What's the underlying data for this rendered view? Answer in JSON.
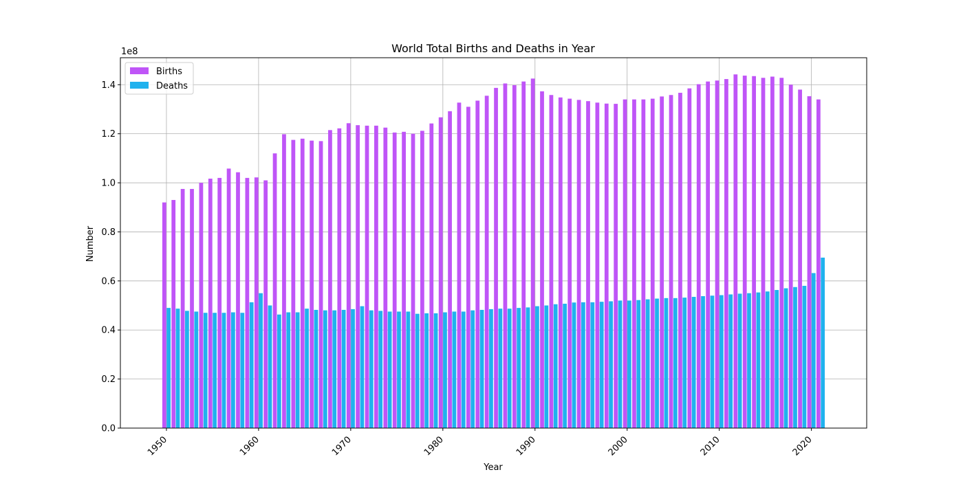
{
  "chart_data": {
    "type": "bar",
    "title": "World Total Births and Deaths in Year",
    "xlabel": "Year",
    "ylabel": "Number",
    "y_offset_label": "1e8",
    "y_scale": 100000000,
    "xlim": [
      1945,
      2026
    ],
    "ylim": [
      0,
      1.51
    ],
    "x_ticks": [
      1950,
      1960,
      1970,
      1980,
      1990,
      2000,
      2010,
      2020
    ],
    "y_ticks": [
      0.0,
      0.2,
      0.4,
      0.6,
      0.8,
      1.0,
      1.2,
      1.4
    ],
    "y_tick_labels": [
      "0.0",
      "0.2",
      "0.4",
      "0.6",
      "0.8",
      "1.0",
      "1.2",
      "1.4"
    ],
    "x_tick_rotation": 45,
    "grid": true,
    "legend_position": "top-left",
    "x": [
      1950,
      1951,
      1952,
      1953,
      1954,
      1955,
      1956,
      1957,
      1958,
      1959,
      1960,
      1961,
      1962,
      1963,
      1964,
      1965,
      1966,
      1967,
      1968,
      1969,
      1970,
      1971,
      1972,
      1973,
      1974,
      1975,
      1976,
      1977,
      1978,
      1979,
      1980,
      1981,
      1982,
      1983,
      1984,
      1985,
      1986,
      1987,
      1988,
      1989,
      1990,
      1991,
      1992,
      1993,
      1994,
      1995,
      1996,
      1997,
      1998,
      1999,
      2000,
      2001,
      2002,
      2003,
      2004,
      2005,
      2006,
      2007,
      2008,
      2009,
      2010,
      2011,
      2012,
      2013,
      2014,
      2015,
      2016,
      2017,
      2018,
      2019,
      2020,
      2021
    ],
    "series": [
      {
        "name": "Births",
        "color": "#bf55f7",
        "values": [
          0.92,
          0.93,
          0.975,
          0.975,
          1.0,
          1.017,
          1.02,
          1.058,
          1.043,
          1.02,
          1.022,
          1.01,
          1.12,
          1.198,
          1.175,
          1.18,
          1.172,
          1.17,
          1.215,
          1.222,
          1.243,
          1.235,
          1.233,
          1.233,
          1.225,
          1.205,
          1.208,
          1.2,
          1.212,
          1.242,
          1.267,
          1.292,
          1.327,
          1.31,
          1.335,
          1.355,
          1.387,
          1.405,
          1.398,
          1.413,
          1.425,
          1.373,
          1.358,
          1.348,
          1.343,
          1.338,
          1.333,
          1.327,
          1.323,
          1.322,
          1.34,
          1.34,
          1.34,
          1.343,
          1.352,
          1.358,
          1.367,
          1.385,
          1.402,
          1.413,
          1.417,
          1.423,
          1.442,
          1.437,
          1.435,
          1.428,
          1.433,
          1.428,
          1.4,
          1.38,
          1.353,
          1.34
        ]
      },
      {
        "name": "Deaths",
        "color": "#20b2ee",
        "values": [
          0.49,
          0.487,
          0.478,
          0.475,
          0.47,
          0.47,
          0.47,
          0.472,
          0.47,
          0.513,
          0.55,
          0.5,
          0.463,
          0.472,
          0.472,
          0.487,
          0.482,
          0.48,
          0.48,
          0.482,
          0.485,
          0.497,
          0.48,
          0.478,
          0.475,
          0.475,
          0.475,
          0.466,
          0.468,
          0.468,
          0.472,
          0.475,
          0.475,
          0.48,
          0.482,
          0.485,
          0.487,
          0.487,
          0.49,
          0.492,
          0.497,
          0.5,
          0.505,
          0.507,
          0.512,
          0.513,
          0.513,
          0.515,
          0.517,
          0.52,
          0.52,
          0.522,
          0.525,
          0.528,
          0.53,
          0.53,
          0.532,
          0.535,
          0.538,
          0.54,
          0.542,
          0.545,
          0.548,
          0.55,
          0.553,
          0.557,
          0.563,
          0.57,
          0.575,
          0.58,
          0.632,
          0.695
        ]
      }
    ]
  }
}
